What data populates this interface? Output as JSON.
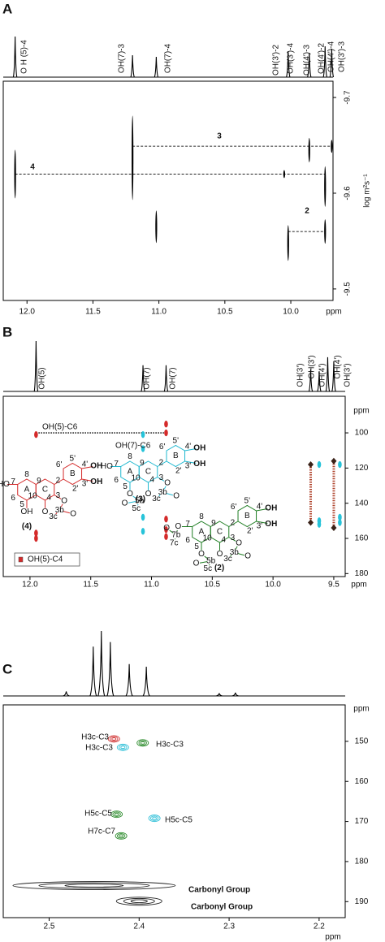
{
  "chart_data": [
    {
      "type": "nmr2d",
      "panel": "A",
      "spectrum": {
        "x": [
          12.09,
          11.2,
          11.02,
          10.02,
          9.86,
          9.74,
          9.69
        ],
        "intensity": [
          100,
          54,
          50,
          64,
          60,
          76,
          70
        ]
      },
      "peak_labels": [
        "O H (5)-4",
        "OH(7)-3",
        "OH(7)-4",
        "OH(3')-2",
        "OH(3')-4",
        "OH(4')-3",
        "OH(4')-2",
        "OH(4')-4",
        "OH(3')-3"
      ],
      "series": [
        {
          "color": "#000000",
          "x": [
            12.09,
            11.2,
            11.02,
            10.05,
            10.02,
            9.86,
            9.74,
            9.74,
            9.69
          ],
          "y": [
            -9.62,
            -9.637,
            -9.565,
            -9.62,
            -9.548,
            -9.645,
            -9.607,
            -9.56,
            -9.649
          ]
        }
      ],
      "tie_lines": [
        {
          "label": "3",
          "y": -9.649,
          "x": [
            11.2,
            9.69
          ]
        },
        {
          "label": "4",
          "y": -9.62,
          "x": [
            12.09,
            9.74
          ]
        },
        {
          "label": "2",
          "y": -9.56,
          "x": [
            10.02,
            9.74
          ]
        }
      ],
      "xlim": [
        12.18,
        9.68
      ],
      "ylim": [
        -9.717,
        -9.488
      ],
      "xticks": [
        {
          "value": 12,
          "label": "12.0"
        },
        11.5,
        {
          "value": 11,
          "label": "11.0"
        },
        10.5,
        {
          "value": 10,
          "label": "10.0"
        }
      ],
      "yticks": [
        -9.7,
        -9.6,
        -9.5
      ],
      "xlabel": "ppm",
      "ylabel": "log m²s⁻¹"
    },
    {
      "type": "nmr2d",
      "panel": "B",
      "spectrum": {
        "x": [
          11.95,
          11.07,
          10.88,
          9.69,
          9.62,
          9.55,
          9.5
        ],
        "intensity": [
          100,
          52,
          52,
          44,
          40,
          68,
          60
        ]
      },
      "peak_labels": [
        "OH(5)",
        "OH(7)",
        "OH(7)",
        "OH(3')",
        "OH(3')",
        "OH(4')",
        "OH(4')",
        "OH(3')"
      ],
      "series": [
        {
          "color": "#d42a2a",
          "x": [
            11.95,
            11.95,
            11.95,
            10.88,
            10.88,
            10.88,
            10.88,
            10.88
          ],
          "y": [
            101,
            157,
            160,
            95,
            100,
            149,
            155,
            159
          ]
        },
        {
          "color": "#27c3d9",
          "x": [
            11.07,
            11.07,
            11.07,
            11.07,
            9.62,
            9.62,
            9.62,
            9.45,
            9.45,
            9.45
          ],
          "y": [
            101,
            109,
            148,
            156,
            118,
            150,
            152,
            118,
            148,
            151
          ]
        },
        {
          "color": "#3a2218",
          "linestyle": "dotted",
          "x": [
            9.69,
            9.69,
            9.5,
            9.5
          ],
          "y": [
            118,
            151,
            116,
            154
          ]
        }
      ],
      "tie_lines": [
        {
          "y": 100,
          "x": [
            11.95,
            10.88
          ]
        }
      ],
      "annotations": [
        "OH(5)-C6",
        "OH(7)-C6",
        "OH(5)-C4"
      ],
      "structures": [
        {
          "color": "#d42a2a",
          "labels": [
            "HO",
            "A",
            "C",
            "B",
            "8",
            "7",
            "6",
            "5",
            "9",
            "10",
            "2",
            "3",
            "4",
            "6'",
            "5'",
            "4'",
            "3'",
            "2'",
            "OH",
            "OH",
            "OH",
            "O",
            "O",
            "3b",
            "3c",
            "O",
            "(4)"
          ]
        },
        {
          "color": "#1fb8d0",
          "labels": [
            "HO",
            "A",
            "C",
            "B",
            "8",
            "7",
            "6",
            "5",
            "9",
            "10",
            "2",
            "3",
            "4",
            "6'",
            "5'",
            "4'",
            "3'",
            "2'",
            "OH",
            "OH",
            "O",
            "O",
            "O",
            "3b",
            "3c",
            "O",
            "5b",
            "5c",
            "O",
            "(3)"
          ]
        },
        {
          "color": "#1e7d22",
          "labels": [
            "O",
            "A",
            "C",
            "B",
            "8",
            "7",
            "6",
            "5",
            "9",
            "10",
            "2",
            "3",
            "4",
            "6'",
            "5'",
            "4'",
            "3'",
            "2'",
            "OH",
            "OH",
            "O",
            "O",
            "O",
            "3b",
            "3c",
            "O",
            "5b",
            "5c",
            "O",
            "7b",
            "7c",
            "O",
            "(2)"
          ]
        }
      ],
      "xlim": [
        12.22,
        9.406
      ],
      "ylim": [
        79.2,
        181.7
      ],
      "xticks": [
        {
          "value": 12,
          "label": "12.0"
        },
        11.5,
        {
          "value": 11,
          "label": "11.0"
        },
        10.5,
        {
          "value": 10,
          "label": "10.0"
        },
        9.5
      ],
      "yticks": [
        100,
        120,
        140,
        160,
        180
      ],
      "xlabel": "ppm",
      "ylabel": "ppm"
    },
    {
      "type": "nmr2d",
      "panel": "C",
      "spectrum": {
        "x": [
          2.481,
          2.451,
          2.442,
          2.432,
          2.411,
          2.392,
          2.311,
          2.293
        ],
        "intensity": [
          7,
          76,
          100,
          83,
          49,
          45,
          4,
          5
        ]
      },
      "series": [
        {
          "color": "#d03030",
          "x": [
            2.428
          ],
          "y": [
            149.4
          ]
        },
        {
          "color": "#30c0d8",
          "x": [
            2.418,
            2.383
          ],
          "y": [
            151.5,
            169.2
          ]
        },
        {
          "color": "#2a8a2a",
          "x": [
            2.396,
            2.425,
            2.42
          ],
          "y": [
            150.4,
            168.2,
            173.6
          ]
        },
        {
          "color": "#222222",
          "x": [
            2.45,
            2.4
          ],
          "y": [
            186.0,
            189.9
          ]
        }
      ],
      "annotations": [
        "H3c-C3",
        "H3c-C3",
        "H3c-C3",
        "H5c-C5",
        "H5c-C5",
        "H7c-C7",
        "Carbonyl Group",
        "Carbonyl Group"
      ],
      "xlim": [
        2.551,
        2.171
      ],
      "ylim": [
        140.9,
        194.0
      ],
      "xticks": [
        2.5,
        2.4,
        2.3,
        2.2
      ],
      "yticks": [
        150,
        160,
        170,
        180,
        190
      ],
      "xlabel": "ppm",
      "ylabel": "ppm"
    }
  ]
}
